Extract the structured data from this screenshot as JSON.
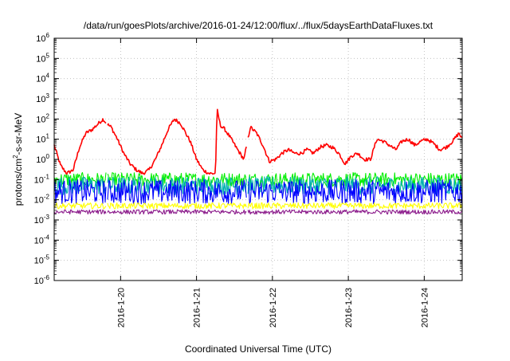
{
  "chart_data": {
    "type": "line",
    "title": "/data/run/goesPlots/archive/2016-01-24/12:00/flux/../flux/5daysEarthDataFluxes.txt",
    "xlabel": "Coordinated Universal Time (UTC)",
    "ylabel": "protons/cm²-s-sr-MeV",
    "ylabel_parts": {
      "pre": "protons/cm",
      "sup": "2",
      "post": "-s-sr-MeV"
    },
    "y_scale": "log",
    "ylim": [
      1e-06,
      1000000.0
    ],
    "y_ticks": [
      {
        "exp": "-6",
        "value": 1e-06
      },
      {
        "exp": "-5",
        "value": 1e-05
      },
      {
        "exp": "-4",
        "value": 0.0001
      },
      {
        "exp": "-3",
        "value": 0.001
      },
      {
        "exp": "-2",
        "value": 0.01
      },
      {
        "exp": "-1",
        "value": 0.1
      },
      {
        "exp": "0",
        "value": 1
      },
      {
        "exp": "1",
        "value": 10
      },
      {
        "exp": "2",
        "value": 100
      },
      {
        "exp": "3",
        "value": 1000
      },
      {
        "exp": "4",
        "value": 10000
      },
      {
        "exp": "5",
        "value": 100000
      },
      {
        "exp": "6",
        "value": 1000000
      }
    ],
    "xlim": [
      "2016-01-19 03:00",
      "2016-01-24 12:00"
    ],
    "x_ticks": [
      "2016-1-20",
      "2016-1-21",
      "2016-1-22",
      "2016-1-23",
      "2016-1-24"
    ],
    "grid": true,
    "gaps": [
      [
        "2016-01-19 19:30",
        "2016-01-19 19:40"
      ],
      [
        "2016-01-21 16:00",
        "2016-01-21 16:10"
      ]
    ],
    "series": [
      {
        "color": "#ff0000",
        "x": [
          "2016-01-19 03:00",
          "2016-01-19 05:00",
          "2016-01-19 07:00",
          "2016-01-19 09:00",
          "2016-01-19 11:00",
          "2016-01-19 13:00",
          "2016-01-19 15:00",
          "2016-01-19 17:00",
          "2016-01-19 18:30",
          "2016-01-19 19:30",
          "2016-01-19 21:00",
          "2016-01-19 23:00",
          "2016-01-20 01:00",
          "2016-01-20 03:00",
          "2016-01-20 05:00",
          "2016-01-20 07:00",
          "2016-01-20 09:00",
          "2016-01-20 11:00",
          "2016-01-20 13:00",
          "2016-01-20 15:00",
          "2016-01-20 17:00",
          "2016-01-20 19:00",
          "2016-01-20 21:00",
          "2016-01-20 22:00",
          "2016-01-21 00:00",
          "2016-01-21 02:00",
          "2016-01-21 04:00",
          "2016-01-21 06:00",
          "2016-01-21 06:30",
          "2016-01-21 07:30",
          "2016-01-21 09:00",
          "2016-01-21 11:00",
          "2016-01-21 13:00",
          "2016-01-21 15:00",
          "2016-01-21 17:00",
          "2016-01-21 19:00",
          "2016-01-21 21:00",
          "2016-01-21 23:00",
          "2016-01-22 01:00",
          "2016-01-22 03:00",
          "2016-01-22 05:00",
          "2016-01-22 07:00",
          "2016-01-22 09:00",
          "2016-01-22 11:00",
          "2016-01-22 13:00",
          "2016-01-22 15:00",
          "2016-01-22 17:00",
          "2016-01-22 19:00",
          "2016-01-22 21:00",
          "2016-01-22 23:00",
          "2016-01-23 01:00",
          "2016-01-23 03:00",
          "2016-01-23 05:00",
          "2016-01-23 07:00",
          "2016-01-23 09:00",
          "2016-01-23 11:00",
          "2016-01-23 13:00",
          "2016-01-23 15:00",
          "2016-01-23 17:00",
          "2016-01-23 19:00",
          "2016-01-23 21:00",
          "2016-01-23 23:00",
          "2016-01-24 01:00",
          "2016-01-24 03:00",
          "2016-01-24 05:00",
          "2016-01-24 07:00",
          "2016-01-24 09:00",
          "2016-01-24 11:00",
          "2016-01-24 12:00"
        ],
        "values": [
          5,
          0.5,
          0.2,
          0.3,
          4,
          20,
          30,
          60,
          100,
          60,
          40,
          10,
          2,
          0.6,
          0.3,
          0.2,
          0.3,
          1,
          5,
          30,
          100,
          60,
          15,
          8,
          1,
          0.3,
          0.2,
          0.2,
          300,
          50,
          30,
          10,
          3,
          1,
          40,
          20,
          5,
          0.8,
          1,
          2,
          3,
          2,
          2,
          3,
          2,
          4,
          5,
          4,
          2,
          0.6,
          1.5,
          2,
          1,
          1,
          10,
          8,
          5,
          3,
          8,
          10,
          5,
          8,
          10,
          6,
          3,
          4,
          8,
          20,
          10
        ]
      },
      {
        "color": "#00ee00",
        "x": [
          "2016-01-19 03:00",
          "2016-01-24 12:00"
        ],
        "values": [
          0.1,
          0.1
        ]
      },
      {
        "color": "#00b0b0",
        "x": [
          "2016-01-19 03:00",
          "2016-01-24 12:00"
        ],
        "values": [
          0.05,
          0.05
        ]
      },
      {
        "color": "#0000ff",
        "x": [
          "2016-01-19 03:00",
          "2016-01-24 12:00"
        ],
        "values": [
          0.025,
          0.025
        ]
      },
      {
        "color": "#ffff00",
        "x": [
          "2016-01-19 03:00",
          "2016-01-24 12:00"
        ],
        "values": [
          0.005,
          0.005
        ]
      },
      {
        "color": "#8b1a8b",
        "x": [
          "2016-01-19 03:00",
          "2016-01-24 12:00"
        ],
        "values": [
          0.0025,
          0.0025
        ]
      }
    ]
  }
}
